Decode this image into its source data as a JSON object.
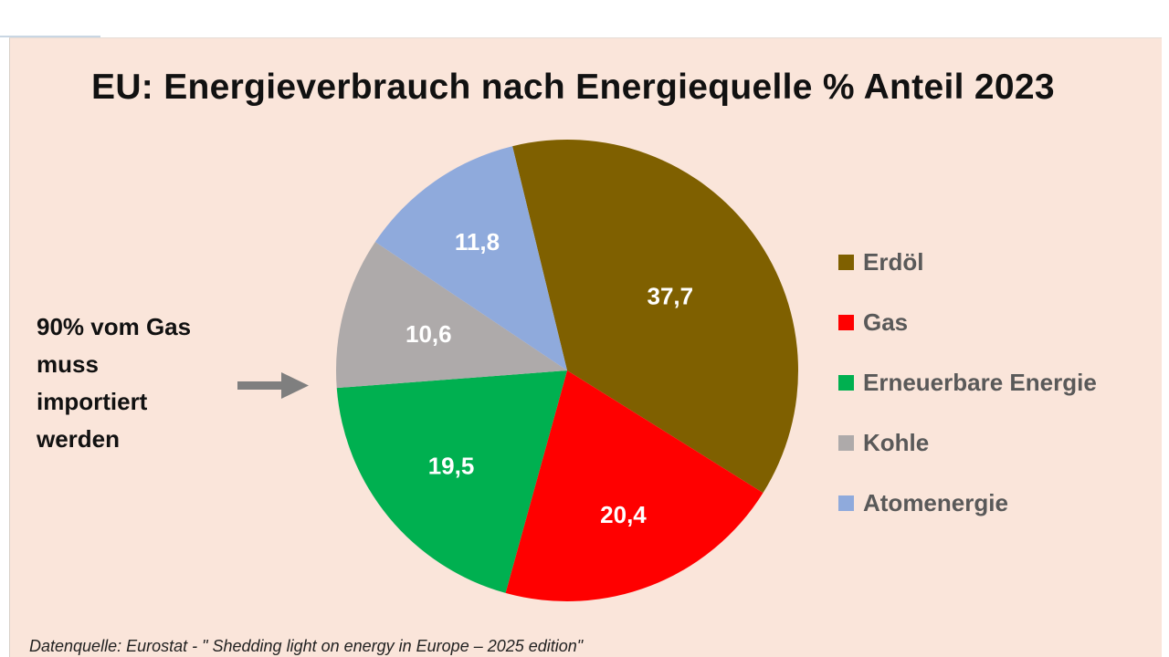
{
  "chart_data": {
    "type": "pie",
    "title": "EU: Energieverbrauch nach Energiequelle % Anteil  2023",
    "categories": [
      "Erdöl",
      "Gas",
      "Erneuerbare Energie",
      "Kohle",
      "Atomenergie"
    ],
    "values": [
      37.7,
      20.4,
      19.5,
      10.6,
      11.8
    ],
    "value_labels": [
      "37,7",
      "20,4",
      "19,5",
      "10,6",
      "11,8"
    ],
    "colors": [
      "#7f6000",
      "#ff0000",
      "#00b050",
      "#aeaaaa",
      "#8faadc"
    ],
    "legend_position": "right",
    "annotation": "90% vom Gas\nmuss\nimportiert\nwerden",
    "source": "Datenquelle: Eurostat - \" Shedding light on energy in Europe – 2025 edition\""
  },
  "colors": {
    "panel_background": "#fae5da",
    "arrow": "#7f7f7f",
    "legend_text": "#595959"
  }
}
